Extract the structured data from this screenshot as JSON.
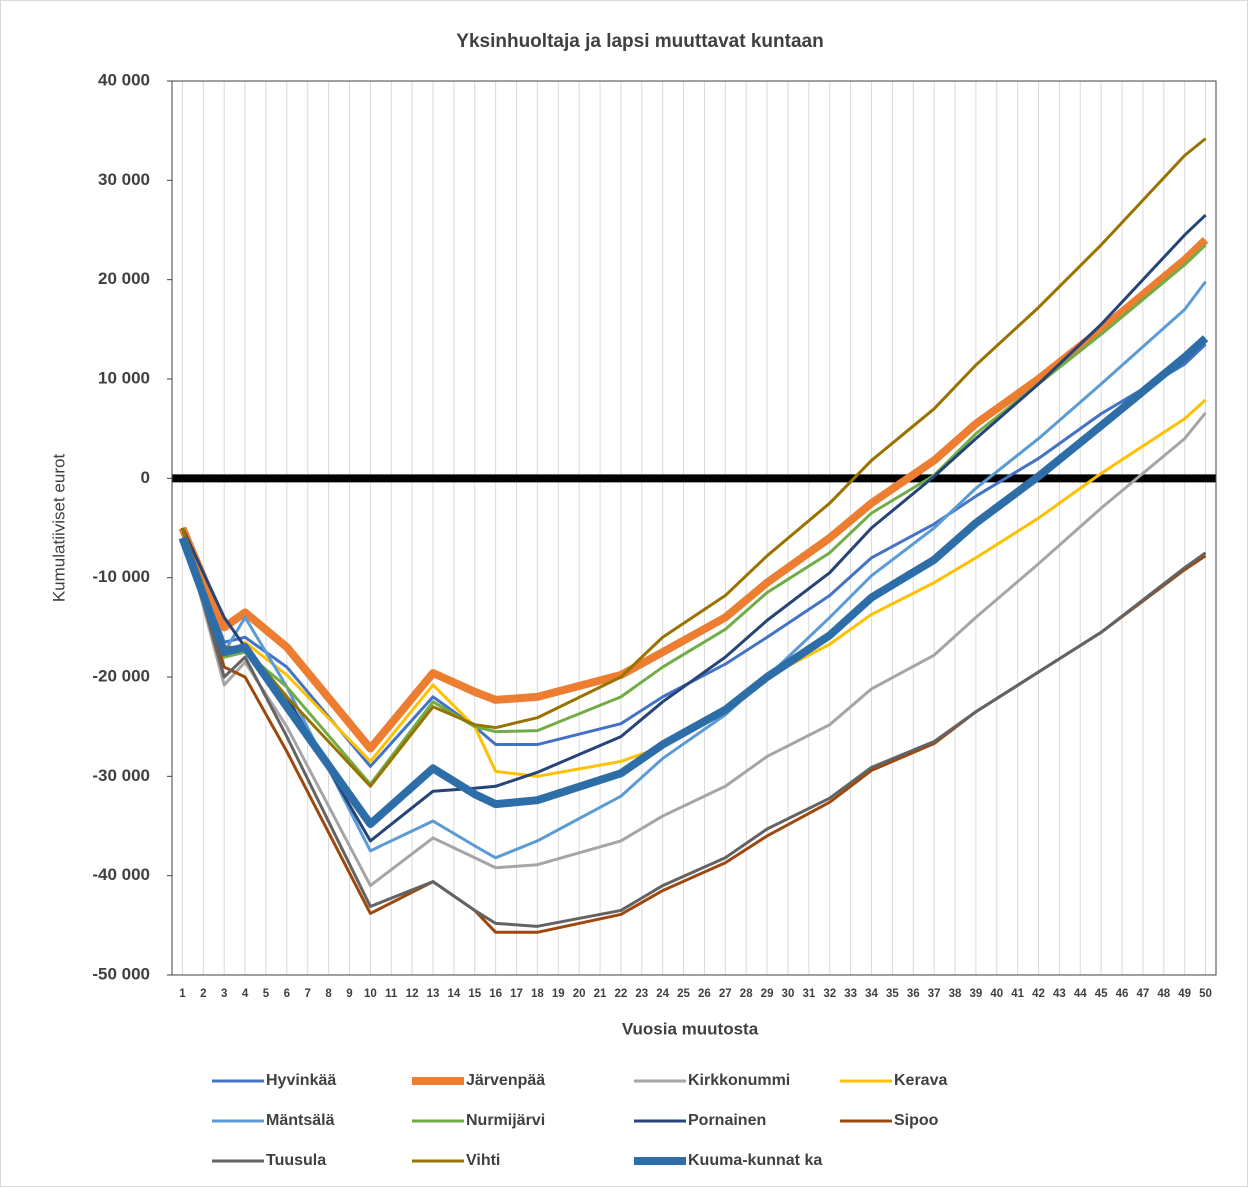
{
  "chart_data": {
    "type": "line",
    "title": "Yksinhuoltaja ja lapsi muuttavat kuntaan",
    "x_label": "Vuosia muutosta",
    "y_label": "Kumulatiiviset eurot",
    "x": [
      1,
      3,
      4,
      6,
      10,
      13,
      15,
      16,
      18,
      22,
      24,
      27,
      29,
      32,
      34,
      37,
      39,
      42,
      45,
      49,
      50
    ],
    "xlim": [
      0.5,
      50.5
    ],
    "xticks": [
      1,
      2,
      3,
      4,
      5,
      6,
      7,
      8,
      9,
      10,
      11,
      12,
      13,
      14,
      15,
      16,
      17,
      18,
      19,
      20,
      21,
      22,
      23,
      24,
      25,
      26,
      27,
      28,
      29,
      30,
      31,
      32,
      33,
      34,
      35,
      36,
      37,
      38,
      39,
      40,
      41,
      42,
      43,
      44,
      45,
      46,
      47,
      48,
      49,
      50
    ],
    "ylim": [
      -50000,
      40000
    ],
    "yticks": [
      {
        "value": -50000,
        "label": "-50 000"
      },
      {
        "value": -40000,
        "label": "-40 000"
      },
      {
        "value": -30000,
        "label": "-30 000"
      },
      {
        "value": -20000,
        "label": "-20 000"
      },
      {
        "value": -10000,
        "label": "-10 000"
      },
      0,
      {
        "value": 10000,
        "label": "10 000"
      },
      {
        "value": 20000,
        "label": "20 000"
      },
      {
        "value": 30000,
        "label": "30 000"
      },
      {
        "value": 40000,
        "label": "40 000"
      }
    ],
    "grid": "x",
    "zero_line": true,
    "legend": "bottom",
    "series": [
      {
        "name": "Hyvinkää",
        "color": "#4472c4",
        "width": 3,
        "values": [
          -5000,
          -16500,
          -16000,
          -19000,
          -29000,
          -22000,
          -25000,
          -26800,
          -26800,
          -24700,
          -22000,
          -18700,
          -16000,
          -11800,
          -8000,
          -4600,
          -1800,
          2000,
          6500,
          11500,
          13500
        ]
      },
      {
        "name": "Järvenpää",
        "color": "#ed7d31",
        "width": 8,
        "values": [
          -5000,
          -15000,
          -13500,
          -17000,
          -27200,
          -19600,
          -21500,
          -22300,
          -22000,
          -19800,
          -17500,
          -14000,
          -10500,
          -6000,
          -2500,
          1800,
          5500,
          10000,
          15000,
          22000,
          24000
        ]
      },
      {
        "name": "Kirkkonummi",
        "color": "#a5a5a5",
        "width": 3,
        "values": [
          -5000,
          -20800,
          -18500,
          -25000,
          -41000,
          -36200,
          -38200,
          -39200,
          -38900,
          -36500,
          -34000,
          -31000,
          -28000,
          -24800,
          -21200,
          -17800,
          -14000,
          -8600,
          -3000,
          4000,
          6600
        ]
      },
      {
        "name": "Kerava",
        "color": "#ffc000",
        "width": 3,
        "values": [
          -5000,
          -18000,
          -16500,
          -19800,
          -28500,
          -20800,
          -25000,
          -29500,
          -30000,
          -28500,
          -27000,
          -23500,
          -20000,
          -16700,
          -13700,
          -10500,
          -8000,
          -4000,
          500,
          6000,
          7900
        ]
      },
      {
        "name": "Mäntsälä",
        "color": "#5b9bd5",
        "width": 3,
        "values": [
          -5000,
          -17500,
          -14000,
          -21000,
          -37500,
          -34500,
          -37000,
          -38200,
          -36500,
          -32000,
          -28200,
          -23800,
          -20000,
          -14000,
          -9800,
          -5000,
          -1000,
          4000,
          9500,
          17000,
          19800
        ]
      },
      {
        "name": "Nurmijärvi",
        "color": "#70ad47",
        "width": 3,
        "values": [
          -5000,
          -18000,
          -17500,
          -21000,
          -30800,
          -22500,
          -25000,
          -25500,
          -25400,
          -22000,
          -19000,
          -15200,
          -11500,
          -7500,
          -3500,
          300,
          4500,
          9500,
          14500,
          21500,
          23500
        ]
      },
      {
        "name": "Pornainen",
        "color": "#264478",
        "width": 3,
        "values": [
          -5000,
          -14000,
          -17000,
          -22000,
          -36500,
          -31500,
          -31200,
          -31000,
          -29600,
          -26000,
          -22500,
          -18000,
          -14300,
          -9500,
          -5000,
          200,
          4000,
          9500,
          15500,
          24500,
          26500
        ]
      },
      {
        "name": "Sipoo",
        "color": "#9e480e",
        "width": 3,
        "values": [
          -5000,
          -19000,
          -20000,
          -27500,
          -43800,
          -40600,
          -43500,
          -45700,
          -45700,
          -43900,
          -41500,
          -38700,
          -36000,
          -32600,
          -29400,
          -26700,
          -23500,
          -19500,
          -15500,
          -9200,
          -7800
        ]
      },
      {
        "name": "Tuusula",
        "color": "#636363",
        "width": 3,
        "values": [
          -5000,
          -20000,
          -18000,
          -26000,
          -43100,
          -40600,
          -43500,
          -44800,
          -45100,
          -43500,
          -41000,
          -38200,
          -35300,
          -32200,
          -29100,
          -26500,
          -23500,
          -19500,
          -15500,
          -9000,
          -7500
        ]
      },
      {
        "name": "Vihti",
        "color": "#997300",
        "width": 3,
        "values": [
          -5000,
          -17000,
          -17000,
          -22000,
          -31000,
          -23000,
          -24800,
          -25100,
          -24100,
          -20000,
          -16000,
          -11800,
          -7800,
          -2500,
          1800,
          7000,
          11400,
          17200,
          23500,
          32500,
          34200
        ]
      },
      {
        "name": "Kuuma-kunnat ka",
        "color": "#2e6ea8",
        "width": 8,
        "values": [
          -6000,
          -17500,
          -17000,
          -23000,
          -34800,
          -29200,
          -31800,
          -32800,
          -32400,
          -29700,
          -26800,
          -23300,
          -20000,
          -15800,
          -12000,
          -8200,
          -4500,
          200,
          5300,
          12200,
          14100
        ]
      }
    ]
  }
}
